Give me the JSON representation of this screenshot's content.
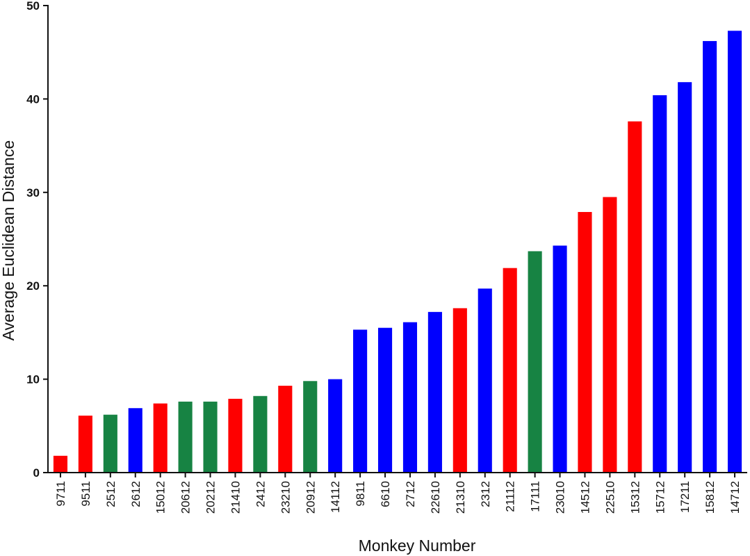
{
  "chart_data": {
    "type": "bar",
    "title": "",
    "xlabel": "Monkey Number",
    "ylabel": "Average Euclidean Distance",
    "ylim": [
      0,
      50
    ],
    "yticks": [
      0,
      10,
      20,
      30,
      40,
      50
    ],
    "grid": false,
    "legend": "none",
    "categories": [
      "9711",
      "9511",
      "2512",
      "2612",
      "15012",
      "20612",
      "20212",
      "21410",
      "2412",
      "23210",
      "20912",
      "14112",
      "9811",
      "6610",
      "2712",
      "22610",
      "21310",
      "2312",
      "21112",
      "17111",
      "23010",
      "14512",
      "22510",
      "15312",
      "15712",
      "17211",
      "15812",
      "14712"
    ],
    "values": [
      1.8,
      6.1,
      6.2,
      6.9,
      7.4,
      7.6,
      7.6,
      7.9,
      8.2,
      9.3,
      9.8,
      10.0,
      15.3,
      15.5,
      16.1,
      17.2,
      17.6,
      19.7,
      21.9,
      23.7,
      24.3,
      27.9,
      29.5,
      37.6,
      40.4,
      41.8,
      46.2,
      47.3
    ],
    "colors": [
      "#fe0000",
      "#fe0000",
      "#178343",
      "#0000fe",
      "#fe0000",
      "#178343",
      "#178343",
      "#fe0000",
      "#178343",
      "#fe0000",
      "#178343",
      "#0000fe",
      "#0000fe",
      "#0000fe",
      "#0000fe",
      "#0000fe",
      "#fe0000",
      "#0000fe",
      "#fe0000",
      "#178343",
      "#0000fe",
      "#fe0000",
      "#fe0000",
      "#fe0000",
      "#0000fe",
      "#0000fe",
      "#0000fe",
      "#0000fe"
    ]
  }
}
